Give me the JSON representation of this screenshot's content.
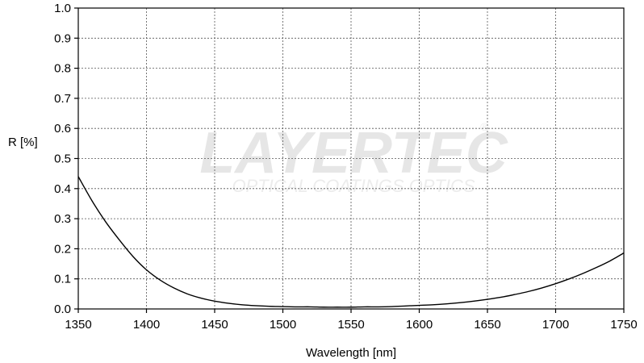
{
  "chart_data": {
    "type": "line",
    "title": "",
    "xlabel": "Wavelength [nm]",
    "ylabel": "R [%]",
    "xlim": [
      1350,
      1750
    ],
    "ylim": [
      0,
      1.0
    ],
    "x_ticks": [
      1350,
      1400,
      1450,
      1500,
      1550,
      1600,
      1650,
      1700,
      1750
    ],
    "y_ticks": [
      "0.0",
      "0.1",
      "0.2",
      "0.3",
      "0.4",
      "0.5",
      "0.6",
      "0.7",
      "0.8",
      "0.9",
      "1.0"
    ],
    "grid": true,
    "series": [
      {
        "color": "#000000",
        "x": [
          1350,
          1360,
          1370,
          1380,
          1390,
          1400,
          1410,
          1420,
          1430,
          1440,
          1450,
          1460,
          1470,
          1480,
          1490,
          1500,
          1510,
          1520,
          1530,
          1540,
          1550,
          1560,
          1570,
          1580,
          1590,
          1600,
          1610,
          1620,
          1630,
          1640,
          1650,
          1660,
          1670,
          1680,
          1690,
          1700,
          1710,
          1720,
          1730,
          1740,
          1750
        ],
        "y": [
          0.44,
          0.36,
          0.29,
          0.23,
          0.175,
          0.13,
          0.096,
          0.07,
          0.05,
          0.036,
          0.026,
          0.019,
          0.014,
          0.011,
          0.009,
          0.008,
          0.007,
          0.007,
          0.006,
          0.006,
          0.006,
          0.007,
          0.007,
          0.008,
          0.01,
          0.012,
          0.014,
          0.017,
          0.021,
          0.026,
          0.032,
          0.039,
          0.048,
          0.058,
          0.07,
          0.084,
          0.1,
          0.118,
          0.138,
          0.16,
          0.186
        ]
      }
    ]
  },
  "watermark": {
    "brand": "LAYERTEC",
    "registered": "®",
    "tagline": "OPTICAL COATINGS OPTICS"
  }
}
